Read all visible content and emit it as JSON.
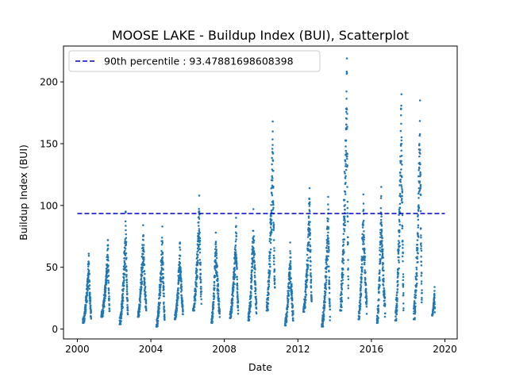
{
  "chart_data": {
    "type": "scatter",
    "title": "MOOSE LAKE - Buildup Index (BUI), Scatterplot",
    "xlabel": "Date",
    "ylabel": "Buildup Index (BUI)",
    "xlim": [
      "1999-04-01",
      "2020-09-01"
    ],
    "ylim": [
      -8,
      229
    ],
    "xticks": [
      "2000",
      "2004",
      "2008",
      "2012",
      "2016",
      "2020"
    ],
    "yticks": [
      0,
      50,
      100,
      150,
      200
    ],
    "grid": false,
    "legend_position": "top-left",
    "reference_line": {
      "label": "90th percentile : 93.47881698608398",
      "value": 93.47881698608398,
      "x_start": "2000-01-01",
      "x_end": "2020-01-01",
      "color": "#0000cc",
      "style": "dashed"
    },
    "point_color": "#1f77b4",
    "seasons": [
      {
        "year": 2000,
        "start": "2000-04-20",
        "end": "2000-10-01",
        "min": 5,
        "max": 61,
        "peak": "2000-08-15"
      },
      {
        "year": 2001,
        "start": "2001-04-20",
        "end": "2001-10-01",
        "min": 10,
        "max": 72,
        "peak": "2001-09-01"
      },
      {
        "year": 2002,
        "start": "2002-04-20",
        "end": "2002-10-01",
        "min": 4,
        "max": 95,
        "peak": "2002-08-20"
      },
      {
        "year": 2003,
        "start": "2003-04-20",
        "end": "2003-10-01",
        "min": 10,
        "max": 84,
        "peak": "2003-08-01"
      },
      {
        "year": 2004,
        "start": "2004-04-20",
        "end": "2004-10-01",
        "min": 2,
        "max": 83,
        "peak": "2004-08-15"
      },
      {
        "year": 2005,
        "start": "2005-04-20",
        "end": "2005-10-01",
        "min": 8,
        "max": 70,
        "peak": "2005-08-01"
      },
      {
        "year": 2006,
        "start": "2006-04-20",
        "end": "2006-10-01",
        "min": 15,
        "max": 108,
        "peak": "2006-08-20"
      },
      {
        "year": 2007,
        "start": "2007-04-20",
        "end": "2007-10-01",
        "min": 5,
        "max": 78,
        "peak": "2007-07-15"
      },
      {
        "year": 2008,
        "start": "2008-04-20",
        "end": "2008-10-01",
        "min": 9,
        "max": 90,
        "peak": "2008-08-20"
      },
      {
        "year": 2009,
        "start": "2009-04-20",
        "end": "2009-10-01",
        "min": 7,
        "max": 97,
        "peak": "2009-08-01"
      },
      {
        "year": 2010,
        "start": "2010-04-20",
        "end": "2010-10-01",
        "min": 15,
        "max": 168,
        "peak": "2010-08-20"
      },
      {
        "year": 2011,
        "start": "2011-04-20",
        "end": "2011-10-01",
        "min": 3,
        "max": 70,
        "peak": "2011-08-01"
      },
      {
        "year": 2012,
        "start": "2012-04-20",
        "end": "2012-10-01",
        "min": 14,
        "max": 114,
        "peak": "2012-08-20"
      },
      {
        "year": 2013,
        "start": "2013-04-20",
        "end": "2013-10-01",
        "min": 2,
        "max": 107,
        "peak": "2013-08-25"
      },
      {
        "year": 2014,
        "start": "2014-04-20",
        "end": "2014-10-01",
        "min": 15,
        "max": 219,
        "peak": "2014-09-01"
      },
      {
        "year": 2015,
        "start": "2015-04-20",
        "end": "2015-10-01",
        "min": 8,
        "max": 109,
        "peak": "2015-07-25"
      },
      {
        "year": 2016,
        "start": "2016-04-20",
        "end": "2016-10-01",
        "min": 5,
        "max": 115,
        "peak": "2016-07-15"
      },
      {
        "year": 2017,
        "start": "2017-04-20",
        "end": "2017-10-01",
        "min": 7,
        "max": 190,
        "peak": "2017-08-20"
      },
      {
        "year": 2018,
        "start": "2018-04-20",
        "end": "2018-10-01",
        "min": 8,
        "max": 185,
        "peak": "2018-08-25"
      },
      {
        "year": 2019,
        "start": "2019-04-20",
        "end": "2019-06-15",
        "min": 11,
        "max": 34,
        "peak": "2019-06-10"
      }
    ]
  }
}
